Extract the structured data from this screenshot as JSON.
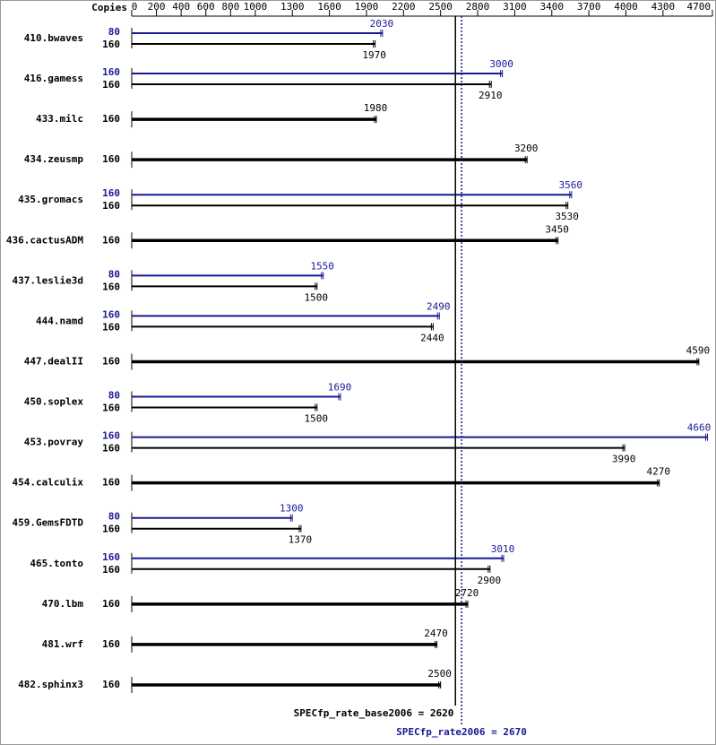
{
  "chart_data": {
    "type": "bar",
    "orientation": "horizontal",
    "copies_header": "Copies",
    "categories": [
      "410.bwaves",
      "416.gamess",
      "433.milc",
      "434.zeusmp",
      "435.gromacs",
      "436.cactusADM",
      "437.leslie3d",
      "444.namd",
      "447.dealII",
      "450.soplex",
      "453.povray",
      "454.calculix",
      "459.GemsFDTD",
      "465.tonto",
      "470.lbm",
      "481.wrf",
      "482.sphinx3"
    ],
    "base_copies": [
      160,
      160,
      160,
      160,
      160,
      160,
      160,
      160,
      160,
      160,
      160,
      160,
      160,
      160,
      160,
      160,
      160
    ],
    "base_values": [
      1970,
      2910,
      1980,
      3200,
      3530,
      3450,
      1500,
      2440,
      4590,
      1500,
      3990,
      4270,
      1370,
      2900,
      2720,
      2470,
      2500
    ],
    "peak_copies": [
      80,
      160,
      null,
      null,
      160,
      null,
      80,
      160,
      null,
      80,
      160,
      null,
      80,
      160,
      null,
      null,
      null
    ],
    "peak_values": [
      2030,
      3000,
      null,
      null,
      3560,
      null,
      1550,
      2490,
      null,
      1690,
      4660,
      null,
      1300,
      3010,
      null,
      null,
      null
    ],
    "base_color": "#000000",
    "peak_color": "#191996",
    "xlim": [
      0,
      4700
    ],
    "xticks": [
      0,
      200,
      400,
      600,
      800,
      1000,
      1300,
      1600,
      1900,
      2200,
      2500,
      2800,
      3100,
      3400,
      3700,
      4000,
      4300,
      4700
    ],
    "base_metric": 2620,
    "base_metric_label": "SPECfp_rate_base2006 = 2620",
    "peak_metric": 2670,
    "peak_metric_label": "SPECfp_rate2006 = 2670"
  }
}
